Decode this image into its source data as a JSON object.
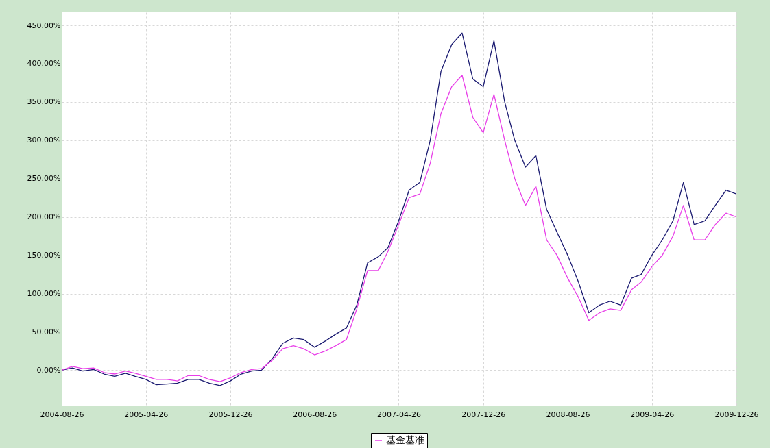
{
  "chart_data": {
    "type": "line",
    "x": [
      "2004-08-26",
      "2004-09-26",
      "2004-10-26",
      "2004-11-26",
      "2004-12-26",
      "2005-01-26",
      "2005-02-26",
      "2005-03-26",
      "2005-04-26",
      "2005-05-26",
      "2005-06-26",
      "2005-07-26",
      "2005-08-26",
      "2005-09-26",
      "2005-10-26",
      "2005-11-26",
      "2005-12-26",
      "2006-01-26",
      "2006-02-26",
      "2006-03-26",
      "2006-04-26",
      "2006-05-26",
      "2006-06-26",
      "2006-07-26",
      "2006-08-26",
      "2006-09-26",
      "2006-10-26",
      "2006-11-26",
      "2006-12-26",
      "2007-01-26",
      "2007-02-26",
      "2007-03-26",
      "2007-04-26",
      "2007-05-26",
      "2007-06-26",
      "2007-07-26",
      "2007-08-26",
      "2007-09-26",
      "2007-10-26",
      "2007-11-26",
      "2007-12-26",
      "2008-01-26",
      "2008-02-26",
      "2008-03-26",
      "2008-04-26",
      "2008-05-26",
      "2008-06-26",
      "2008-07-26",
      "2008-08-26",
      "2008-09-26",
      "2008-10-26",
      "2008-11-26",
      "2008-12-26",
      "2009-01-26",
      "2009-02-26",
      "2009-03-26",
      "2009-04-26",
      "2009-05-26",
      "2009-06-26",
      "2009-07-26",
      "2009-08-26",
      "2009-09-26",
      "2009-10-26",
      "2009-11-26",
      "2009-12-26"
    ],
    "series": [
      {
        "color": "#191970",
        "values": [
          0,
          3,
          -1,
          1,
          -5,
          -8,
          -4,
          -8,
          -12,
          -19,
          -18,
          -17,
          -12,
          -12,
          -17,
          -20,
          -14,
          -5,
          -1,
          0,
          15,
          35,
          42,
          40,
          30,
          38,
          47,
          55,
          85,
          140,
          148,
          160,
          195,
          235,
          245,
          300,
          390,
          425,
          440,
          380,
          370,
          430,
          350,
          300,
          265,
          280,
          210,
          180,
          150,
          115,
          75,
          85,
          90,
          85,
          120,
          125,
          150,
          170,
          195,
          245,
          190,
          195,
          215,
          235,
          230
        ]
      },
      {
        "name": "基金基准",
        "color": "#e83ee8",
        "values": [
          0,
          5,
          2,
          3,
          -3,
          -5,
          -1,
          -4,
          -8,
          -12,
          -12,
          -14,
          -7,
          -7,
          -12,
          -15,
          -10,
          -3,
          1,
          2,
          13,
          28,
          32,
          28,
          20,
          25,
          32,
          40,
          80,
          130,
          130,
          155,
          190,
          225,
          230,
          270,
          335,
          370,
          385,
          330,
          310,
          360,
          300,
          250,
          215,
          240,
          170,
          150,
          120,
          95,
          65,
          75,
          80,
          78,
          105,
          115,
          135,
          150,
          175,
          215,
          170,
          170,
          190,
          205,
          200
        ]
      }
    ],
    "xlim": [
      "2004-08-26",
      "2009-12-26"
    ],
    "xticks": [
      "2004-08-26",
      "2005-04-26",
      "2005-12-26",
      "2006-08-26",
      "2007-04-26",
      "2007-12-26",
      "2008-08-26",
      "2009-04-26",
      "2009-12-26"
    ],
    "ylim": [
      -47,
      467
    ],
    "yticks": [
      {
        "value": 0,
        "label": "0.00%"
      },
      {
        "value": 50,
        "label": "50.00%"
      },
      {
        "value": 100,
        "label": "100.00%"
      },
      {
        "value": 150,
        "label": "150.00%"
      },
      {
        "value": 200,
        "label": "200.00%"
      },
      {
        "value": 250,
        "label": "250.00%"
      },
      {
        "value": 300,
        "label": "300.00%"
      },
      {
        "value": 350,
        "label": "350.00%"
      },
      {
        "value": 400,
        "label": "400.00%"
      },
      {
        "value": 450,
        "label": "450.00%"
      }
    ],
    "grid": true,
    "legend": "bottom"
  }
}
